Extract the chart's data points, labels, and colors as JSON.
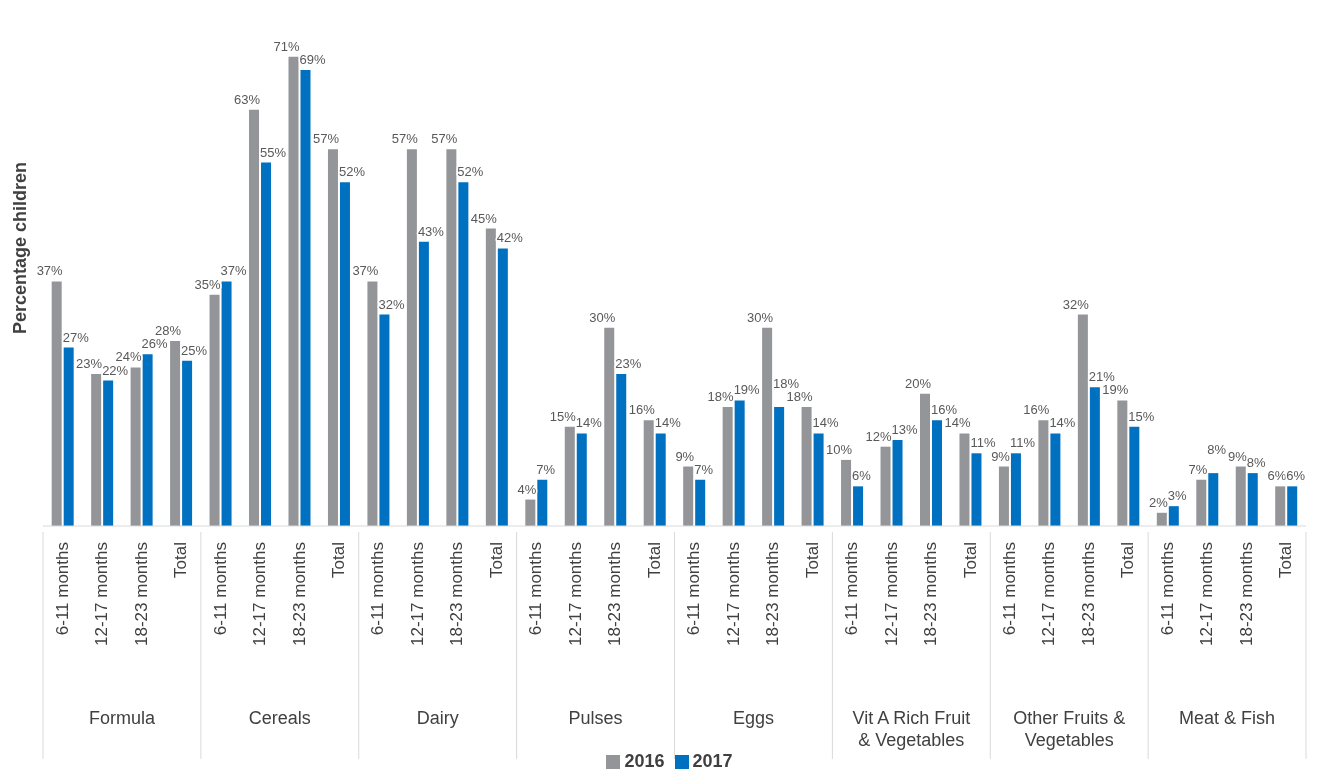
{
  "chart_data": {
    "type": "bar",
    "ylabel": "Percentage children",
    "categories": [
      "6-11 months",
      "12-17 months",
      "18-23 months",
      "Total",
      "6-11 months",
      "12-17 months",
      "18-23 months",
      "Total",
      "6-11 months",
      "12-17 months",
      "18-23 months",
      "Total",
      "6-11 months",
      "12-17 months",
      "18-23 months",
      "Total",
      "6-11 months",
      "12-17 months",
      "18-23 months",
      "Total",
      "6-11 months",
      "12-17 months",
      "18-23 months",
      "Total",
      "6-11 months",
      "12-17 months",
      "18-23 months",
      "Total",
      "6-11 months",
      "12-17 months",
      "18-23 months",
      "Total"
    ],
    "annotations": [
      "Formula",
      "Cereals",
      "Dairy",
      "Pulses",
      "Eggs",
      "Vit A Rich Fruit & Vegetables",
      "Other Fruits & Vegetables",
      "Meat & Fish"
    ],
    "series": [
      {
        "name": "2016",
        "color": "#939598",
        "values": [
          37,
          23,
          24,
          28,
          35,
          63,
          71,
          57,
          37,
          57,
          57,
          45,
          4,
          15,
          30,
          16,
          9,
          18,
          30,
          18,
          10,
          12,
          20,
          14,
          9,
          16,
          32,
          19,
          2,
          7,
          9,
          6
        ],
        "value_labels": [
          "37%",
          "23%",
          "24%",
          "28%",
          "35%",
          "63%",
          "71%",
          "57%",
          "37%",
          "57%",
          "57%",
          "45%",
          "4%",
          "15%",
          "30%",
          "16%",
          "9%",
          "18%",
          "30%",
          "18%",
          "10%",
          "12%",
          "20%",
          "14%",
          "9%",
          "16%",
          "32%",
          "19%",
          "2%",
          "7%",
          "9%",
          "6%"
        ]
      },
      {
        "name": "2017",
        "color": "#0070c0",
        "values": [
          27,
          22,
          26,
          25,
          37,
          55,
          69,
          52,
          32,
          43,
          52,
          42,
          7,
          14,
          23,
          14,
          7,
          19,
          18,
          14,
          6,
          13,
          16,
          11,
          11,
          14,
          21,
          15,
          3,
          8,
          8,
          6
        ],
        "value_labels": [
          "27%",
          "22%",
          "26%",
          "25%",
          "37%",
          "55%",
          "69%",
          "52%",
          "32%",
          "43%",
          "52%",
          "42%",
          "7%",
          "14%",
          "23%",
          "14%",
          "7%",
          "19%",
          "18%",
          "14%",
          "6%",
          "13%",
          "16%",
          "11%",
          "11%",
          "14%",
          "21%",
          "15%",
          "3%",
          "8%",
          "8%",
          "6%"
        ]
      }
    ],
    "legend": "bottom"
  }
}
